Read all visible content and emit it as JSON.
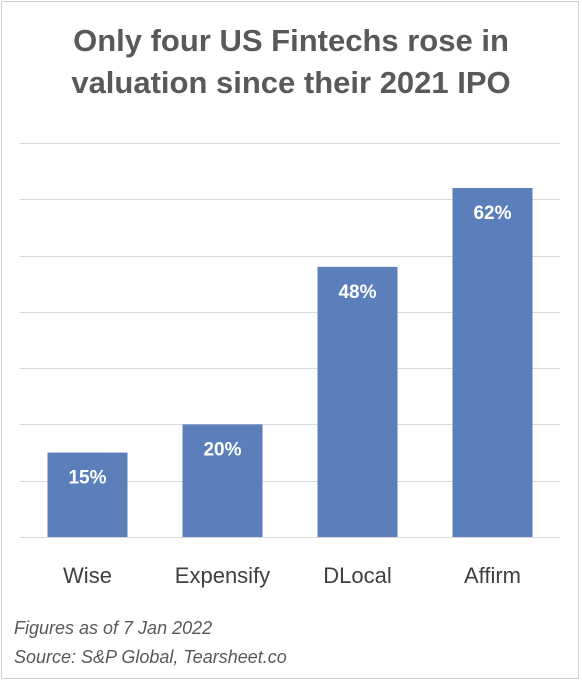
{
  "chart_data": {
    "type": "bar",
    "title": "Only four US Fintechs rose in valuation since their 2021 IPO",
    "title_lines": [
      "Only four US Fintechs rose in",
      "valuation since their 2021 IPO"
    ],
    "categories": [
      "Wise",
      "Expensify",
      "DLocal",
      "Affirm"
    ],
    "values": [
      15,
      20,
      48,
      62
    ],
    "data_labels": [
      "15%",
      "20%",
      "48%",
      "62%"
    ],
    "ylim": [
      0,
      70
    ],
    "ytick_step": 10,
    "y_axis_labels_shown": false,
    "grid": true,
    "legend": "none",
    "bar_color": "#5b7fbb",
    "label_color": "#ffffff",
    "grid_color": "#d9d9d9"
  },
  "footnotes": {
    "as_of": "Figures as of 7 Jan 2022",
    "source": "Source: S&P Global, Tearsheet.co"
  }
}
